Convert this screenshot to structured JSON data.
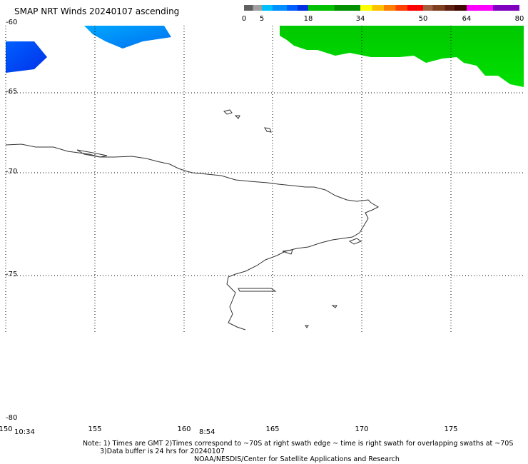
{
  "title": "SMAP NRT Winds 20240107 ascending",
  "colorbar": {
    "ticks": [
      "0",
      "5",
      "18",
      "34",
      "50",
      "64",
      "80"
    ],
    "segments": [
      {
        "from": 0,
        "to": 2.5,
        "color": "#606060"
      },
      {
        "from": 2.5,
        "to": 5,
        "color": "#a0a0a0"
      },
      {
        "from": 5,
        "to": 8,
        "color": "#00c0ff"
      },
      {
        "from": 8,
        "to": 12,
        "color": "#0090ff"
      },
      {
        "from": 12,
        "to": 15,
        "color": "#0060ff"
      },
      {
        "from": 15,
        "to": 18,
        "color": "#0030e0"
      },
      {
        "from": 18,
        "to": 26,
        "color": "#00c000"
      },
      {
        "from": 26,
        "to": 34,
        "color": "#009000"
      },
      {
        "from": 34,
        "to": 37,
        "color": "#ffff00"
      },
      {
        "from": 37,
        "to": 40,
        "color": "#ffc000"
      },
      {
        "from": 40,
        "to": 43,
        "color": "#ff8000"
      },
      {
        "from": 43,
        "to": 46,
        "color": "#ff4000"
      },
      {
        "from": 46,
        "to": 50,
        "color": "#ff0000"
      },
      {
        "from": 50,
        "to": 53,
        "color": "#a06040"
      },
      {
        "from": 53,
        "to": 57,
        "color": "#804020"
      },
      {
        "from": 57,
        "to": 60,
        "color": "#602010"
      },
      {
        "from": 60,
        "to": 64,
        "color": "#400800"
      },
      {
        "from": 64,
        "to": 72,
        "color": "#ff00ff"
      },
      {
        "from": 72,
        "to": 80,
        "color": "#8000c0"
      }
    ]
  },
  "map": {
    "lon_ticks": [
      "150",
      "155",
      "160",
      "165",
      "170",
      "175"
    ],
    "lat_ticks": [
      "-60",
      "-65",
      "-70",
      "-75",
      "-80"
    ],
    "swath_times": [
      "10:34",
      "8:54"
    ],
    "colors": {
      "low_wind": "#0040ff",
      "mid_wind": "#0090ff",
      "high_wind": "#00d000",
      "coastline": "#333333",
      "grid": "#000000"
    }
  },
  "notes": {
    "line1": "Note: 1) Times are GMT 2)Times correspond to ~70S at right swath edge ~ time is right swath for overlapping swaths at ~70S",
    "line2": "3)Data buffer is 24 hrs for 20240107",
    "line3": "NOAA/NESDIS/Center for Satellite Applications and Research"
  }
}
